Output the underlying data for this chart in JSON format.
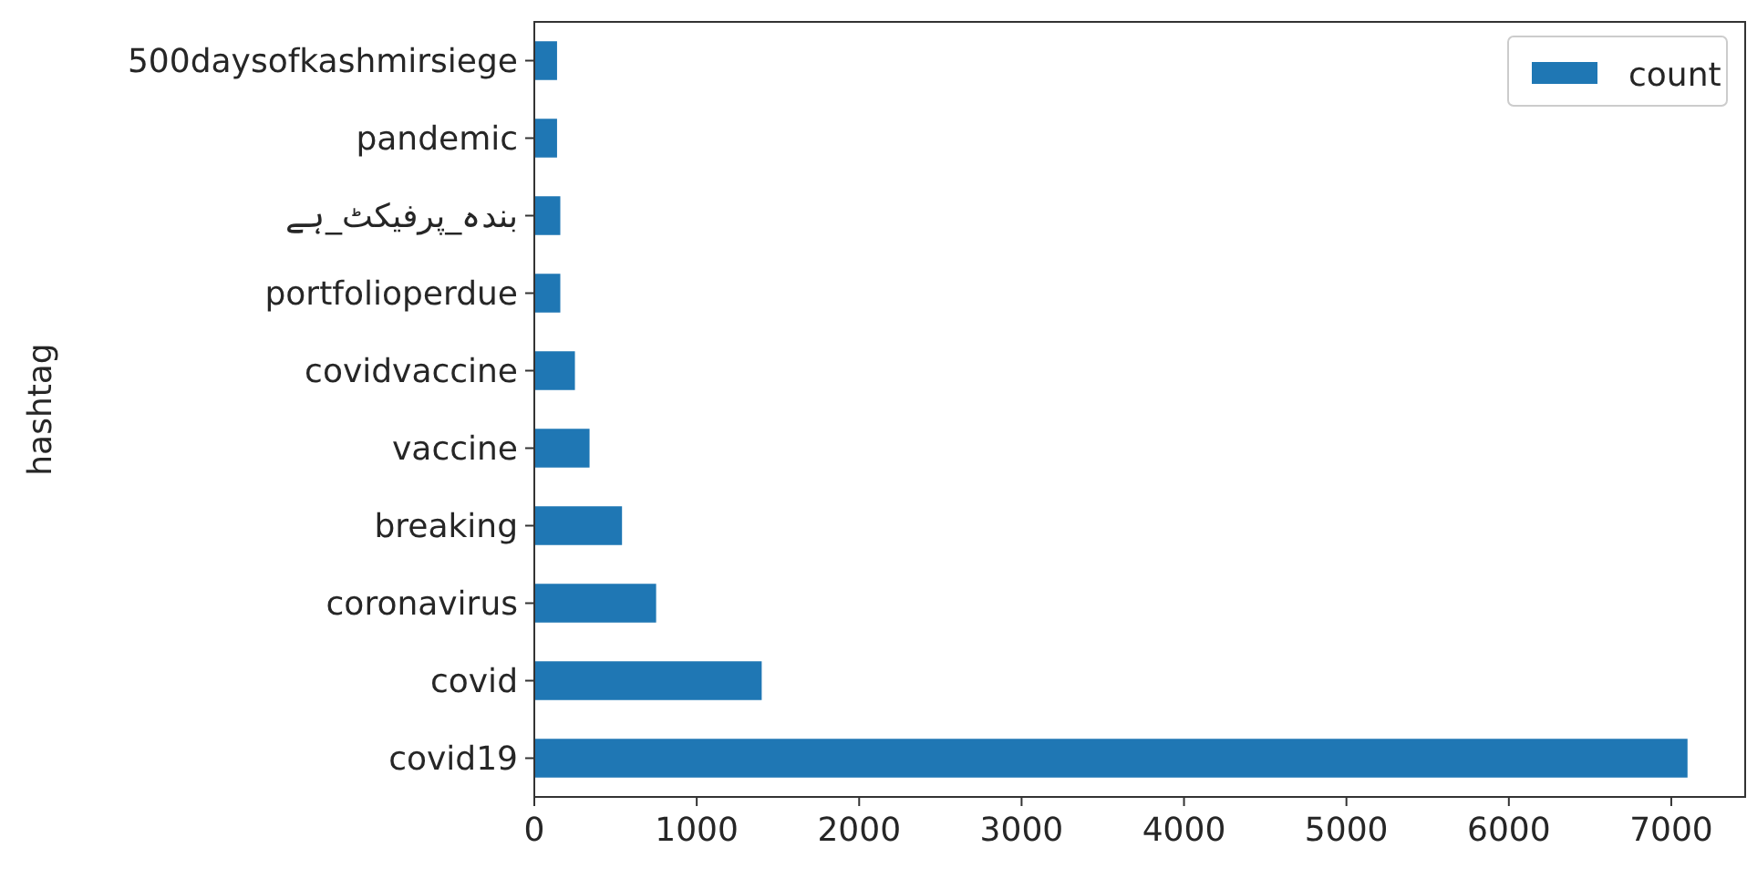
{
  "chart_data": {
    "type": "bar",
    "orientation": "horizontal",
    "ylabel": "hashtag",
    "categories": [
      "500daysofkashmirsiege",
      "pandemic",
      "بندہ_پرفیکٹ_ہے",
      "portfolioperdue",
      "covidvaccine",
      "vaccine",
      "breaking",
      "coronavirus",
      "covid",
      "covid19"
    ],
    "series": [
      {
        "name": "count",
        "color": "#1f77b4",
        "values": [
          140,
          140,
          160,
          160,
          250,
          340,
          540,
          750,
          1400,
          7100
        ]
      }
    ],
    "xlim": [
      0,
      7455
    ],
    "xticks": [
      0,
      1000,
      2000,
      3000,
      4000,
      5000,
      6000,
      7000
    ],
    "legend": "top right",
    "grid": false
  }
}
